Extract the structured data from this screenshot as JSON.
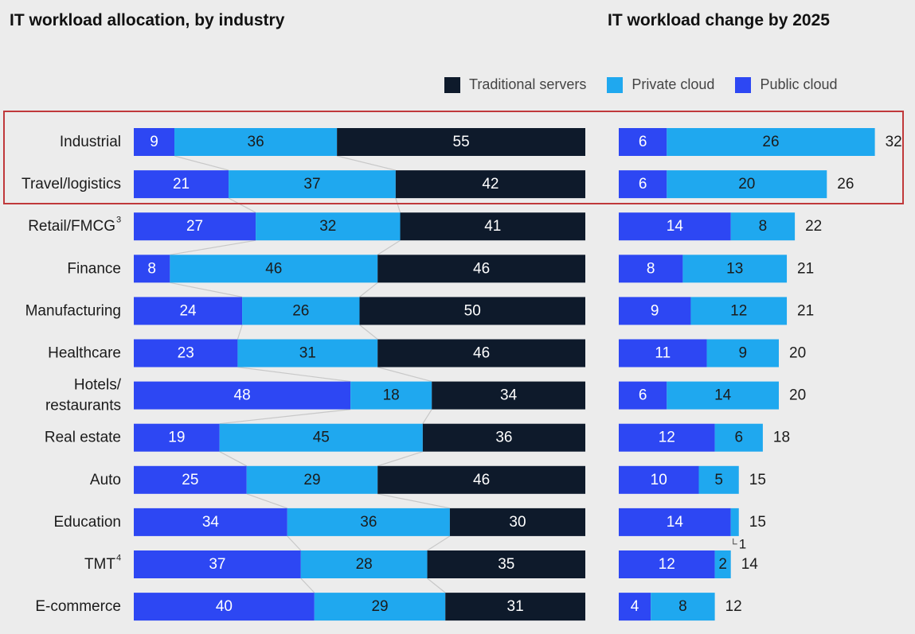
{
  "colors": {
    "traditional": "#0e1a2b",
    "private": "#1fa8ef",
    "public": "#2d47f3",
    "connector": "#c8c8c8",
    "highlight": "#c0393b",
    "label_dark": "#1b1b1b",
    "label_light": "#ffffff",
    "background": "#ececec"
  },
  "chart_data": [
    {
      "type": "bar",
      "stacked": true,
      "orientation": "horizontal",
      "title": "IT workload allocation, by industry",
      "unit": "%",
      "xlim": [
        0,
        100
      ],
      "legend": [
        "Traditional servers",
        "Private cloud",
        "Public cloud"
      ],
      "legend_position": "top-right",
      "categories": [
        "Industrial",
        "Travel/logistics",
        "Retail/FMCG",
        "Finance",
        "Manufacturing",
        "Healthcare",
        "Hotels/ restaurants",
        "Real estate",
        "Auto",
        "Education",
        "TMT",
        "E-commerce"
      ],
      "category_footnotes": [
        "",
        "",
        "3",
        "",
        "",
        "",
        "",
        "",
        "",
        "",
        "4",
        ""
      ],
      "series": [
        {
          "name": "Public cloud",
          "color_key": "public",
          "values": [
            9,
            21,
            27,
            8,
            24,
            23,
            48,
            19,
            25,
            34,
            37,
            40
          ]
        },
        {
          "name": "Private cloud",
          "color_key": "private",
          "values": [
            36,
            37,
            32,
            46,
            26,
            31,
            18,
            45,
            29,
            36,
            28,
            29
          ]
        },
        {
          "name": "Traditional servers",
          "color_key": "traditional",
          "values": [
            55,
            42,
            41,
            46,
            50,
            46,
            34,
            36,
            46,
            30,
            35,
            31
          ]
        }
      ],
      "highlighted_categories": [
        "Industrial",
        "Travel/logistics"
      ]
    },
    {
      "type": "bar",
      "stacked": true,
      "orientation": "horizontal",
      "title": "IT workload change by 2025",
      "unit": "percentage points",
      "xlim": [
        0,
        32
      ],
      "categories": [
        "Industrial",
        "Travel/logistics",
        "Retail/FMCG",
        "Finance",
        "Manufacturing",
        "Healthcare",
        "Hotels/ restaurants",
        "Real estate",
        "Auto",
        "Education",
        "TMT",
        "E-commerce"
      ],
      "series": [
        {
          "name": "Public cloud",
          "color_key": "public",
          "values": [
            6,
            6,
            14,
            8,
            9,
            11,
            6,
            12,
            10,
            14,
            12,
            4
          ]
        },
        {
          "name": "Private cloud",
          "color_key": "private",
          "values": [
            26,
            20,
            8,
            13,
            12,
            9,
            14,
            6,
            5,
            1,
            2,
            8
          ]
        }
      ],
      "totals": [
        32,
        26,
        22,
        21,
        21,
        20,
        20,
        18,
        15,
        15,
        14,
        12
      ],
      "outside_labels": [
        {
          "category": "Education",
          "series": "Private cloud",
          "text": "1"
        }
      ]
    }
  ]
}
